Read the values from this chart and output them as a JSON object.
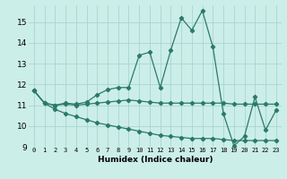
{
  "xlabel": "Humidex (Indice chaleur)",
  "background_color": "#cceee8",
  "grid_color": "#aad4ce",
  "line_color": "#2a7a6a",
  "xlim": [
    -0.5,
    23.5
  ],
  "ylim": [
    9,
    15.8
  ],
  "ytick_vals": [
    9,
    10,
    11,
    12,
    13,
    14,
    15
  ],
  "xtick_vals": [
    0,
    1,
    2,
    3,
    4,
    5,
    6,
    7,
    8,
    9,
    10,
    11,
    12,
    13,
    14,
    15,
    16,
    17,
    18,
    19,
    20,
    21,
    22,
    23
  ],
  "series1": [
    11.7,
    11.1,
    11.0,
    11.1,
    11.05,
    11.15,
    11.5,
    11.75,
    11.85,
    11.85,
    13.4,
    13.55,
    11.85,
    13.65,
    15.2,
    14.6,
    15.55,
    13.8,
    10.6,
    9.05,
    9.5,
    11.4,
    9.8,
    10.75
  ],
  "series2": [
    11.7,
    11.1,
    11.0,
    11.05,
    11.0,
    11.05,
    11.1,
    11.15,
    11.2,
    11.25,
    11.2,
    11.15,
    11.1,
    11.1,
    11.1,
    11.1,
    11.1,
    11.1,
    11.1,
    11.05,
    11.05,
    11.05,
    11.05,
    11.05
  ],
  "series3": [
    11.7,
    11.1,
    10.8,
    10.6,
    10.45,
    10.3,
    10.15,
    10.05,
    9.95,
    9.85,
    9.75,
    9.65,
    9.55,
    9.5,
    9.45,
    9.4,
    9.4,
    9.4,
    9.35,
    9.3,
    9.3,
    9.3,
    9.3,
    9.3
  ],
  "markersize": 2.2,
  "linewidth": 0.9
}
